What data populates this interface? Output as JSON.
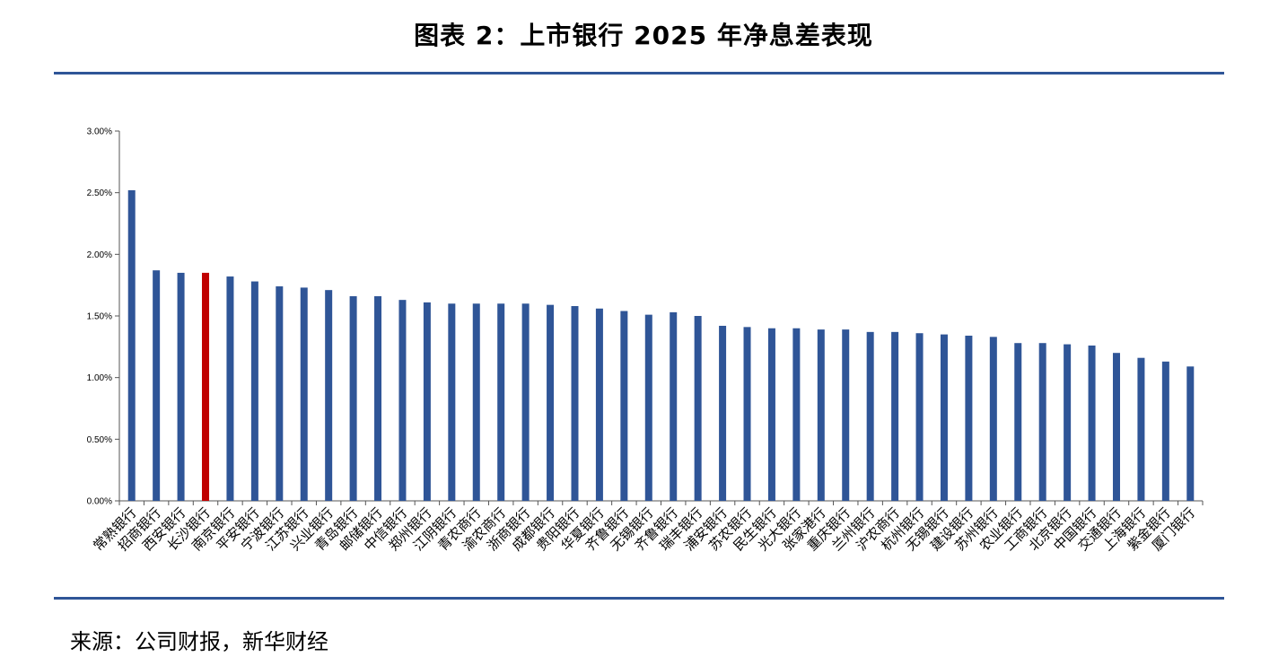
{
  "page": {
    "title": "图表 2：上市银行 2025 年净息差表现",
    "source": "来源：公司财报，新华财经",
    "rule_color": "#2f5597"
  },
  "chart_data": {
    "type": "bar",
    "title": "",
    "xlabel": "",
    "ylabel": "",
    "ylim": [
      0,
      0.03
    ],
    "y_ticks": [
      0,
      0.005,
      0.01,
      0.015,
      0.02,
      0.025,
      0.03
    ],
    "y_tick_labels": [
      "0.00%",
      "0.50%",
      "1.00%",
      "1.50%",
      "2.00%",
      "2.50%",
      "3.00%"
    ],
    "grid": false,
    "legend": "none",
    "bar_color": "#2f5597",
    "highlight_color": "#c00000",
    "highlight_category": "长沙银行",
    "categories": [
      "常熟银行",
      "招商银行",
      "西安银行",
      "长沙银行",
      "南京银行",
      "平安银行",
      "宁波银行",
      "江苏银行",
      "兴业银行",
      "青岛银行",
      "邮储银行",
      "中信银行",
      "郑州银行",
      "江阴银行",
      "青农商行",
      "渝农商行",
      "浙商银行",
      "成都银行",
      "贵阳银行",
      "华夏银行",
      "齐鲁银行",
      "无锡银行",
      "齐鲁银行",
      "瑞丰银行",
      "浦安银行",
      "苏农银行",
      "民生银行",
      "光大银行",
      "张家港行",
      "重庆银行",
      "兰州银行",
      "沪农商行",
      "杭州银行",
      "无锡银行",
      "建设银行",
      "苏州银行",
      "农业银行",
      "工商银行",
      "北京银行",
      "中国银行",
      "交通银行",
      "上海银行",
      "紫金银行",
      "厦门银行"
    ],
    "values": [
      0.0252,
      0.0187,
      0.0185,
      0.0185,
      0.0182,
      0.0178,
      0.0174,
      0.0173,
      0.0171,
      0.0166,
      0.0166,
      0.0163,
      0.0161,
      0.016,
      0.016,
      0.016,
      0.016,
      0.0159,
      0.0158,
      0.0156,
      0.0154,
      0.0151,
      0.0153,
      0.015,
      0.0142,
      0.0141,
      0.014,
      0.014,
      0.0139,
      0.0139,
      0.0137,
      0.0137,
      0.0136,
      0.0135,
      0.0134,
      0.0133,
      0.0128,
      0.0128,
      0.0127,
      0.0126,
      0.012,
      0.0116,
      0.0113,
      0.0109
    ]
  }
}
